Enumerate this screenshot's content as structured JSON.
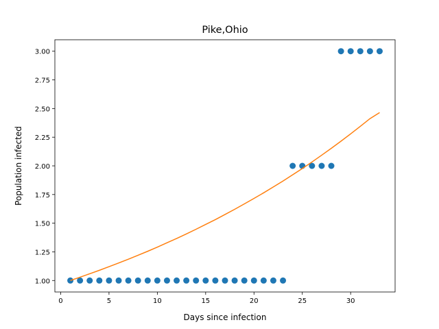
{
  "chart_data": {
    "type": "scatter",
    "title": "Pike,Ohio",
    "xlabel": "Days since infection",
    "ylabel": "Population infected",
    "xlim": [
      -0.6,
      34.6
    ],
    "ylim": [
      0.9,
      3.1
    ],
    "grid": false,
    "legend": "none",
    "x_ticks": [
      0,
      5,
      10,
      15,
      20,
      25,
      30
    ],
    "y_ticks": [
      1.0,
      1.25,
      1.5,
      1.75,
      2.0,
      2.25,
      2.5,
      2.75,
      3.0
    ],
    "y_tick_labels": [
      "1.00",
      "1.25",
      "1.50",
      "1.75",
      "2.00",
      "2.25",
      "2.50",
      "2.75",
      "3.00"
    ],
    "series": [
      {
        "kind": "scatter",
        "color": "#1f77b4",
        "x": [
          1,
          2,
          3,
          4,
          5,
          6,
          7,
          8,
          9,
          10,
          11,
          12,
          13,
          14,
          15,
          16,
          17,
          18,
          19,
          20,
          21,
          22,
          23,
          24,
          25,
          26,
          27,
          28,
          29,
          30,
          31,
          32,
          33
        ],
        "y": [
          1,
          1,
          1,
          1,
          1,
          1,
          1,
          1,
          1,
          1,
          1,
          1,
          1,
          1,
          1,
          1,
          1,
          1,
          1,
          1,
          1,
          1,
          1,
          2,
          2,
          2,
          2,
          2,
          3,
          3,
          3,
          3,
          3
        ]
      },
      {
        "kind": "line",
        "color": "#ff7f0e",
        "x": [
          1,
          2,
          3,
          4,
          5,
          6,
          7,
          8,
          9,
          10,
          11,
          12,
          13,
          14,
          15,
          16,
          17,
          18,
          19,
          20,
          21,
          22,
          23,
          24,
          25,
          26,
          27,
          28,
          29,
          30,
          31,
          32,
          33
        ],
        "y": [
          1.0,
          1.029,
          1.059,
          1.089,
          1.121,
          1.153,
          1.186,
          1.22,
          1.255,
          1.291,
          1.329,
          1.367,
          1.406,
          1.447,
          1.489,
          1.531,
          1.576,
          1.621,
          1.668,
          1.716,
          1.765,
          1.816,
          1.868,
          1.922,
          1.977,
          2.034,
          2.093,
          2.153,
          2.215,
          2.279,
          2.345,
          2.412,
          2.465
        ]
      }
    ]
  }
}
